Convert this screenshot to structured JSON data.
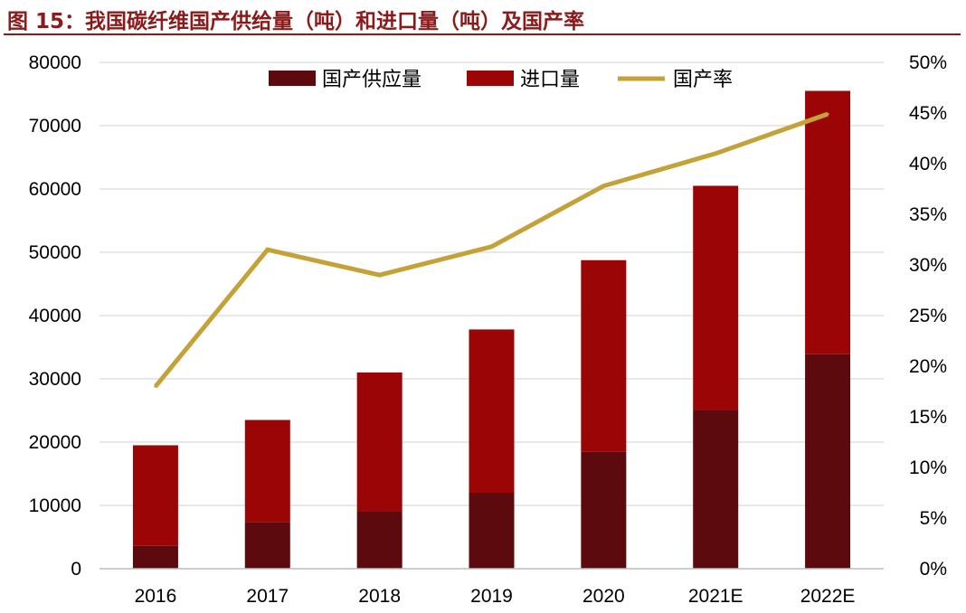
{
  "figure": {
    "title": "图 15：我国碳纤维国产供给量（吨）和进口量（吨）及国产率"
  },
  "chart_data": {
    "type": "bar",
    "stacked": true,
    "categories": [
      "2016",
      "2017",
      "2018",
      "2019",
      "2020",
      "2021E",
      "2022E"
    ],
    "series": [
      {
        "name": "国产供应量",
        "kind": "bar",
        "axis": "left",
        "color": "#5c0a0e",
        "values": [
          3600,
          7400,
          9000,
          12000,
          18450,
          25000,
          33900
        ]
      },
      {
        "name": "进口量",
        "kind": "bar",
        "axis": "left",
        "color": "#9b0505",
        "values": [
          15900,
          16100,
          22000,
          25800,
          30300,
          35500,
          41600
        ]
      },
      {
        "name": "国产率",
        "kind": "line",
        "axis": "right",
        "color": "#c4a237",
        "values": [
          18.0,
          31.5,
          29.0,
          31.8,
          37.8,
          41.0,
          44.9
        ]
      }
    ],
    "y_left": {
      "min": 0,
      "max": 80000,
      "ticks": [
        "0",
        "10000",
        "20000",
        "30000",
        "40000",
        "50000",
        "60000",
        "70000",
        "80000"
      ]
    },
    "y_right": {
      "min": 0,
      "max": 50,
      "ticks": [
        "0%",
        "5%",
        "10%",
        "15%",
        "20%",
        "25%",
        "30%",
        "35%",
        "40%",
        "45%",
        "50%"
      ]
    },
    "grid": true,
    "legend_position": "top"
  }
}
